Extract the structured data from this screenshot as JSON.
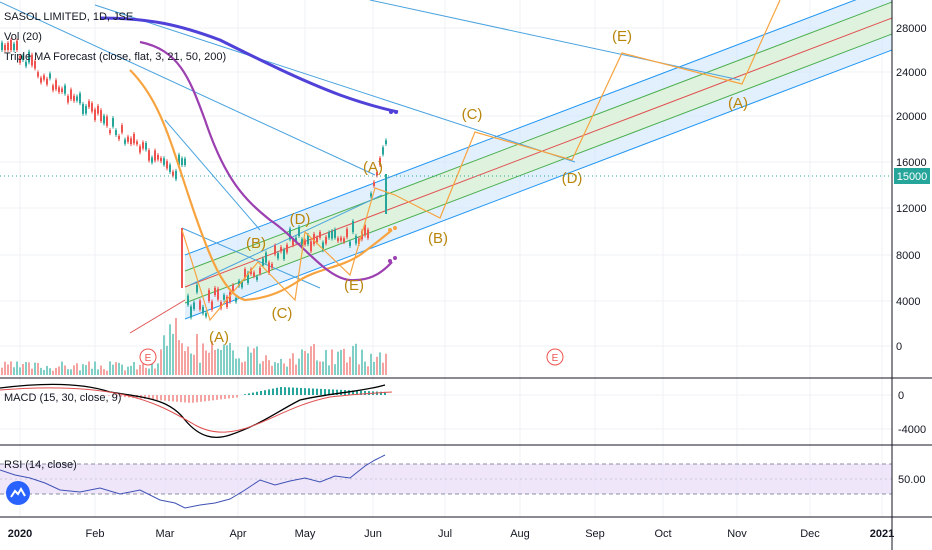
{
  "chart_data": {
    "type": "candlestick",
    "symbol_legend": "SASOL LIMITED, 1D, JSE",
    "indicators": {
      "volume": "Vol (20)",
      "forecast": "Triple MA Forecast (close, flat, 3, 21, 50, 200)",
      "macd": "MACD (15, 30, close, 9)",
      "rsi": "RSI (14, close)"
    },
    "x_axis_labels": [
      "2020",
      "Feb",
      "Mar",
      "Apr",
      "May",
      "Jun",
      "Jul",
      "Aug",
      "Sep",
      "Oct",
      "Nov",
      "Dec",
      "2021"
    ],
    "price_axis_labels": [
      "28000",
      "24000",
      "20000",
      "16000",
      "12000",
      "8000",
      "4000",
      "0"
    ],
    "macd_axis_labels": [
      "0",
      "-4000"
    ],
    "rsi_axis_labels": [
      "50.00"
    ],
    "last_price_label": "15000",
    "earnings_marker": "E",
    "wave_labels": [
      "(A)",
      "(B)",
      "(C)",
      "(D)",
      "(E)"
    ],
    "colors": {
      "ma_fast": "#f7a440",
      "ma_mid": "#9c3fb0",
      "ma_slow": "#5042d8",
      "channel_center": "#e05050",
      "channel_inner": "#4caf50",
      "channel_outer": "#2196f3",
      "trend_lines": "#4aa3df",
      "wave_lines": "#f7a440",
      "wave_text": "#b8860b",
      "up_candle": "#26a69a",
      "down_candle": "#ef5350",
      "macd_line": "#000000",
      "signal_line": "#e05050",
      "rsi_line": "#3f51b5",
      "rsi_band": "#e8dcf8"
    }
  }
}
